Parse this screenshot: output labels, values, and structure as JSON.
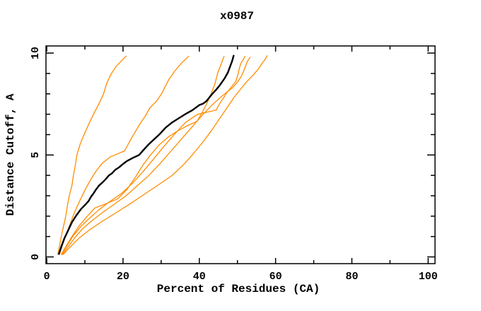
{
  "title": "x0987",
  "colors": {
    "background": "#ffffff",
    "frame": "#000000",
    "black_series": "#000000",
    "orange_series": "#ff8c00"
  },
  "chart_data": {
    "type": "line",
    "title": "x0987",
    "xlabel": "Percent of Residues (CA)",
    "ylabel": "Distance Cutoff, A",
    "xlim": [
      -0.2,
      101.8
    ],
    "ylim": [
      -0.33,
      10.35
    ],
    "grid": false,
    "legend": "none",
    "x_ticks": {
      "major": [
        0,
        20,
        40,
        60,
        80,
        100
      ],
      "minor": [
        10,
        30,
        50,
        70,
        90
      ],
      "labels": [
        "0",
        "20",
        "40",
        "60",
        "80",
        "100"
      ]
    },
    "y_ticks": {
      "major": [
        0,
        5,
        10
      ],
      "minor": [
        1,
        2,
        3,
        4,
        6,
        7,
        8,
        9
      ],
      "labels": [
        "0",
        "5",
        "10"
      ]
    },
    "series": [
      {
        "name": "curve-orange-1",
        "color": "#ff8c00",
        "stroke_width": 1.3,
        "points": [
          [
            2.9,
            0.12
          ],
          [
            3.3,
            0.5
          ],
          [
            3.8,
            1.0
          ],
          [
            4.4,
            1.5
          ],
          [
            5.0,
            2.0
          ],
          [
            5.4,
            2.5
          ],
          [
            5.9,
            3.0
          ],
          [
            6.6,
            3.5
          ],
          [
            7.0,
            4.0
          ],
          [
            7.5,
            4.5
          ],
          [
            7.9,
            5.0
          ],
          [
            8.8,
            5.55
          ],
          [
            9.9,
            6.05
          ],
          [
            11.1,
            6.55
          ],
          [
            12.4,
            7.05
          ],
          [
            13.8,
            7.55
          ],
          [
            14.9,
            8.0
          ],
          [
            15.7,
            8.5
          ],
          [
            16.8,
            8.95
          ],
          [
            18.2,
            9.35
          ],
          [
            19.5,
            9.6
          ],
          [
            20.8,
            9.85
          ]
        ]
      },
      {
        "name": "curve-orange-2",
        "color": "#ff8c00",
        "stroke_width": 1.3,
        "points": [
          [
            3.3,
            0.12
          ],
          [
            4.0,
            0.5
          ],
          [
            4.9,
            1.0
          ],
          [
            5.9,
            1.5
          ],
          [
            6.9,
            2.0
          ],
          [
            7.9,
            2.45
          ],
          [
            8.9,
            2.85
          ],
          [
            10.1,
            3.3
          ],
          [
            11.4,
            3.75
          ],
          [
            12.9,
            4.2
          ],
          [
            14.6,
            4.6
          ],
          [
            16.6,
            4.9
          ],
          [
            18.5,
            5.05
          ],
          [
            20.4,
            5.2
          ],
          [
            22.3,
            5.85
          ],
          [
            24.5,
            6.55
          ],
          [
            25.8,
            6.9
          ],
          [
            27.0,
            7.3
          ],
          [
            28.8,
            7.65
          ],
          [
            30.1,
            8.0
          ],
          [
            32.0,
            8.7
          ],
          [
            33.5,
            9.1
          ],
          [
            35.3,
            9.5
          ],
          [
            36.4,
            9.7
          ],
          [
            37.2,
            9.84
          ]
        ]
      },
      {
        "name": "curve-orange-3",
        "color": "#ff8c00",
        "stroke_width": 1.3,
        "points": [
          [
            3.8,
            0.12
          ],
          [
            5.0,
            0.5
          ],
          [
            6.6,
            1.0
          ],
          [
            8.4,
            1.5
          ],
          [
            10.4,
            1.95
          ],
          [
            12.6,
            2.4
          ],
          [
            15.4,
            2.6
          ],
          [
            18.6,
            2.85
          ],
          [
            21.0,
            3.3
          ],
          [
            23.2,
            3.9
          ],
          [
            25.2,
            4.5
          ],
          [
            27.2,
            5.0
          ],
          [
            29.5,
            5.5
          ],
          [
            32.0,
            5.9
          ],
          [
            34.5,
            6.2
          ],
          [
            37.0,
            6.45
          ],
          [
            39.4,
            6.65
          ],
          [
            40.8,
            7.1
          ],
          [
            41.9,
            7.5
          ],
          [
            43.1,
            8.0
          ],
          [
            44.1,
            8.5
          ],
          [
            44.8,
            9.0
          ],
          [
            45.6,
            9.4
          ],
          [
            46.5,
            9.84
          ]
        ]
      },
      {
        "name": "curve-orange-4",
        "color": "#ff8c00",
        "stroke_width": 1.3,
        "points": [
          [
            3.9,
            0.12
          ],
          [
            5.3,
            0.55
          ],
          [
            7.0,
            1.05
          ],
          [
            9.0,
            1.5
          ],
          [
            11.2,
            1.9
          ],
          [
            13.6,
            2.3
          ],
          [
            16.4,
            2.7
          ],
          [
            19.5,
            3.1
          ],
          [
            22.4,
            3.6
          ],
          [
            25.3,
            4.2
          ],
          [
            28.0,
            4.8
          ],
          [
            30.6,
            5.4
          ],
          [
            33.4,
            6.0
          ],
          [
            36.4,
            6.6
          ],
          [
            39.6,
            7.0
          ],
          [
            42.0,
            7.1
          ],
          [
            44.4,
            7.2
          ],
          [
            45.3,
            7.5
          ],
          [
            46.2,
            7.76
          ],
          [
            47.2,
            8.05
          ],
          [
            48.4,
            8.34
          ],
          [
            49.6,
            8.62
          ],
          [
            50.2,
            9.0
          ],
          [
            50.5,
            9.26
          ],
          [
            50.9,
            9.49
          ],
          [
            51.4,
            9.65
          ],
          [
            52.0,
            9.84
          ]
        ]
      },
      {
        "name": "curve-orange-5",
        "color": "#ff8c00",
        "stroke_width": 1.3,
        "points": [
          [
            4.1,
            0.12
          ],
          [
            5.6,
            0.5
          ],
          [
            7.4,
            0.95
          ],
          [
            9.5,
            1.4
          ],
          [
            12.0,
            1.8
          ],
          [
            14.8,
            2.2
          ],
          [
            17.8,
            2.6
          ],
          [
            20.8,
            3.0
          ],
          [
            23.8,
            3.5
          ],
          [
            26.8,
            4.0
          ],
          [
            29.8,
            4.6
          ],
          [
            32.6,
            5.2
          ],
          [
            35.4,
            5.8
          ],
          [
            38.2,
            6.4
          ],
          [
            41.0,
            7.0
          ],
          [
            43.6,
            7.5
          ],
          [
            46.0,
            7.9
          ],
          [
            48.7,
            8.3
          ],
          [
            49.9,
            8.55
          ],
          [
            51.0,
            8.85
          ],
          [
            51.8,
            9.2
          ],
          [
            52.5,
            9.55
          ],
          [
            53.3,
            9.8
          ]
        ]
      },
      {
        "name": "curve-orange-6",
        "color": "#ff8c00",
        "stroke_width": 1.3,
        "points": [
          [
            4.3,
            0.12
          ],
          [
            6.2,
            0.5
          ],
          [
            8.6,
            0.95
          ],
          [
            11.4,
            1.35
          ],
          [
            14.6,
            1.75
          ],
          [
            18.0,
            2.15
          ],
          [
            21.4,
            2.55
          ],
          [
            25.0,
            3.0
          ],
          [
            29.0,
            3.5
          ],
          [
            32.9,
            4.0
          ],
          [
            36.0,
            4.55
          ],
          [
            38.6,
            5.1
          ],
          [
            41.0,
            5.65
          ],
          [
            43.2,
            6.2
          ],
          [
            45.2,
            6.75
          ],
          [
            47.2,
            7.3
          ],
          [
            49.0,
            7.8
          ],
          [
            50.7,
            8.2
          ],
          [
            52.3,
            8.57
          ],
          [
            54.0,
            8.9
          ],
          [
            55.4,
            9.2
          ],
          [
            56.5,
            9.5
          ],
          [
            57.3,
            9.7
          ],
          [
            57.8,
            9.87
          ]
        ]
      },
      {
        "name": "curve-black",
        "color": "#000000",
        "stroke_width": 2.4,
        "points": [
          [
            3.2,
            0.15
          ],
          [
            3.8,
            0.5
          ],
          [
            4.6,
            0.9
          ],
          [
            5.6,
            1.3
          ],
          [
            6.6,
            1.7
          ],
          [
            7.8,
            2.05
          ],
          [
            9.0,
            2.35
          ],
          [
            10.3,
            2.6
          ],
          [
            11.0,
            2.75
          ],
          [
            11.6,
            2.95
          ],
          [
            12.2,
            3.1
          ],
          [
            12.9,
            3.3
          ],
          [
            13.7,
            3.5
          ],
          [
            14.6,
            3.65
          ],
          [
            15.4,
            3.8
          ],
          [
            16.3,
            4.0
          ],
          [
            17.1,
            4.1
          ],
          [
            18.0,
            4.28
          ],
          [
            19.0,
            4.4
          ],
          [
            20.0,
            4.56
          ],
          [
            21.0,
            4.7
          ],
          [
            22.6,
            4.86
          ],
          [
            24.2,
            5.0
          ],
          [
            25.4,
            5.25
          ],
          [
            26.6,
            5.5
          ],
          [
            28.0,
            5.75
          ],
          [
            29.5,
            6.0
          ],
          [
            31.2,
            6.35
          ],
          [
            32.9,
            6.6
          ],
          [
            34.6,
            6.8
          ],
          [
            36.3,
            7.0
          ],
          [
            38.2,
            7.2
          ],
          [
            40.0,
            7.45
          ],
          [
            41.0,
            7.52
          ],
          [
            41.9,
            7.65
          ],
          [
            43.4,
            8.0
          ],
          [
            44.4,
            8.2
          ],
          [
            45.3,
            8.4
          ],
          [
            46.6,
            8.75
          ],
          [
            47.5,
            9.05
          ],
          [
            48.1,
            9.35
          ],
          [
            48.6,
            9.6
          ],
          [
            49.0,
            9.87
          ]
        ]
      }
    ]
  }
}
